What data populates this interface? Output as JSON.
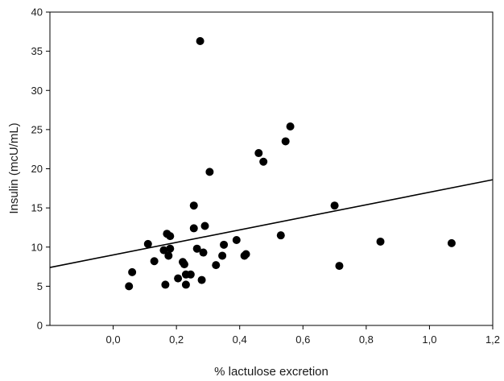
{
  "chart_data": {
    "type": "scatter",
    "title": "",
    "xlabel": "% lactulose excretion",
    "ylabel": "Insulin (mcU/mL)",
    "xlim": [
      -0.2,
      1.2
    ],
    "ylim": [
      0,
      40
    ],
    "x_ticks": [
      0.0,
      0.2,
      0.4,
      0.6,
      0.8,
      1.0,
      1.2
    ],
    "x_tick_labels": [
      "0,0",
      "0,2",
      "0,4",
      "0,6",
      "0,8",
      "1,0",
      "1,2"
    ],
    "y_ticks": [
      0,
      5,
      10,
      15,
      20,
      25,
      30,
      35,
      40
    ],
    "y_tick_labels": [
      "0",
      "5",
      "10",
      "15",
      "20",
      "25",
      "30",
      "35",
      "40"
    ],
    "grid": false,
    "legend": "none",
    "marker_color": "#000000",
    "series": [
      {
        "points": [
          {
            "x": 0.05,
            "y": 5.0
          },
          {
            "x": 0.06,
            "y": 6.8
          },
          {
            "x": 0.11,
            "y": 10.4
          },
          {
            "x": 0.13,
            "y": 8.2
          },
          {
            "x": 0.16,
            "y": 9.6
          },
          {
            "x": 0.165,
            "y": 5.2
          },
          {
            "x": 0.17,
            "y": 11.7
          },
          {
            "x": 0.175,
            "y": 8.9
          },
          {
            "x": 0.18,
            "y": 9.8
          },
          {
            "x": 0.18,
            "y": 11.4
          },
          {
            "x": 0.205,
            "y": 6.0
          },
          {
            "x": 0.22,
            "y": 8.1
          },
          {
            "x": 0.225,
            "y": 7.8
          },
          {
            "x": 0.23,
            "y": 6.5
          },
          {
            "x": 0.23,
            "y": 5.2
          },
          {
            "x": 0.245,
            "y": 6.5
          },
          {
            "x": 0.255,
            "y": 15.3
          },
          {
            "x": 0.255,
            "y": 12.4
          },
          {
            "x": 0.265,
            "y": 9.8
          },
          {
            "x": 0.275,
            "y": 36.3
          },
          {
            "x": 0.28,
            "y": 5.8
          },
          {
            "x": 0.285,
            "y": 9.3
          },
          {
            "x": 0.29,
            "y": 12.7
          },
          {
            "x": 0.305,
            "y": 19.6
          },
          {
            "x": 0.325,
            "y": 7.7
          },
          {
            "x": 0.345,
            "y": 8.9
          },
          {
            "x": 0.35,
            "y": 10.3
          },
          {
            "x": 0.39,
            "y": 10.9
          },
          {
            "x": 0.415,
            "y": 8.9
          },
          {
            "x": 0.42,
            "y": 9.1
          },
          {
            "x": 0.46,
            "y": 22.0
          },
          {
            "x": 0.475,
            "y": 20.9
          },
          {
            "x": 0.53,
            "y": 11.5
          },
          {
            "x": 0.545,
            "y": 23.5
          },
          {
            "x": 0.56,
            "y": 25.4
          },
          {
            "x": 0.7,
            "y": 15.3
          },
          {
            "x": 0.715,
            "y": 7.6
          },
          {
            "x": 0.845,
            "y": 10.7
          },
          {
            "x": 1.07,
            "y": 10.5
          }
        ]
      }
    ],
    "trendline": {
      "x": [
        -0.2,
        1.2
      ],
      "y": [
        7.4,
        18.6
      ]
    }
  }
}
